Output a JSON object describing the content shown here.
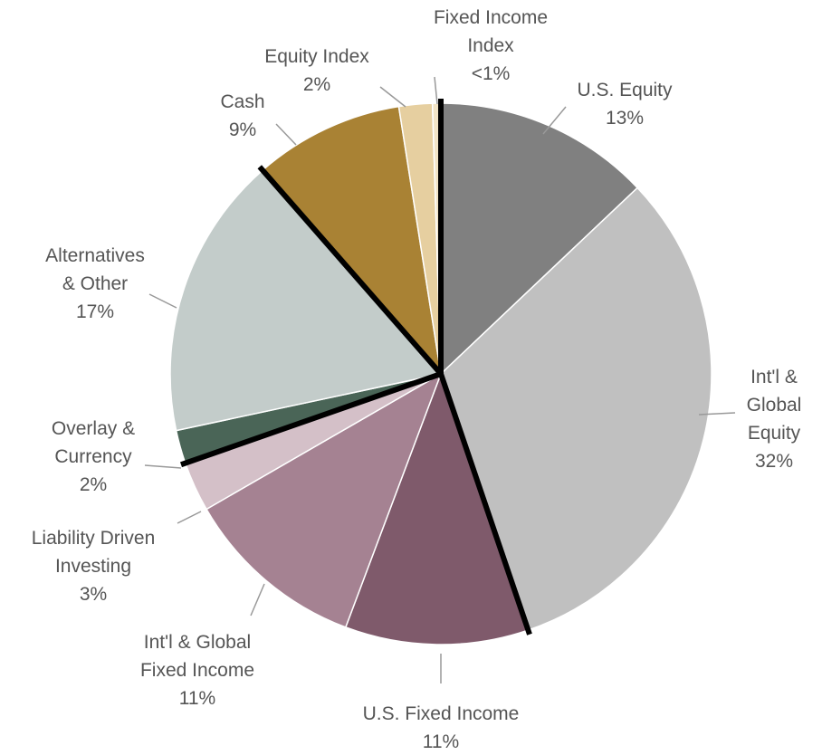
{
  "chart_data": {
    "type": "pie",
    "categories": [
      "U.S.  Equity",
      "Int'l & Global Equity",
      "U.S. Fixed Income",
      "Int'l & Global Fixed Income",
      "Liability Driven Investing",
      "Overlay & Currency",
      "Alternatives & Other",
      "Cash",
      "Equity Index",
      "Fixed Income Index"
    ],
    "values": [
      13,
      32,
      11,
      11,
      3,
      2,
      17,
      9,
      2,
      0.5
    ],
    "value_labels": [
      "13%",
      "32%",
      "11%",
      "11%",
      "3%",
      "2%",
      "17%",
      "9%",
      "2%",
      "<1%"
    ],
    "colors": [
      "#808080",
      "#c0c0c0",
      "#7f5a6b",
      "#a58292",
      "#d4c0c8",
      "#4a6557",
      "#c3ccca",
      "#a98234",
      "#e6cfa0",
      "#f2e4c6"
    ]
  }
}
